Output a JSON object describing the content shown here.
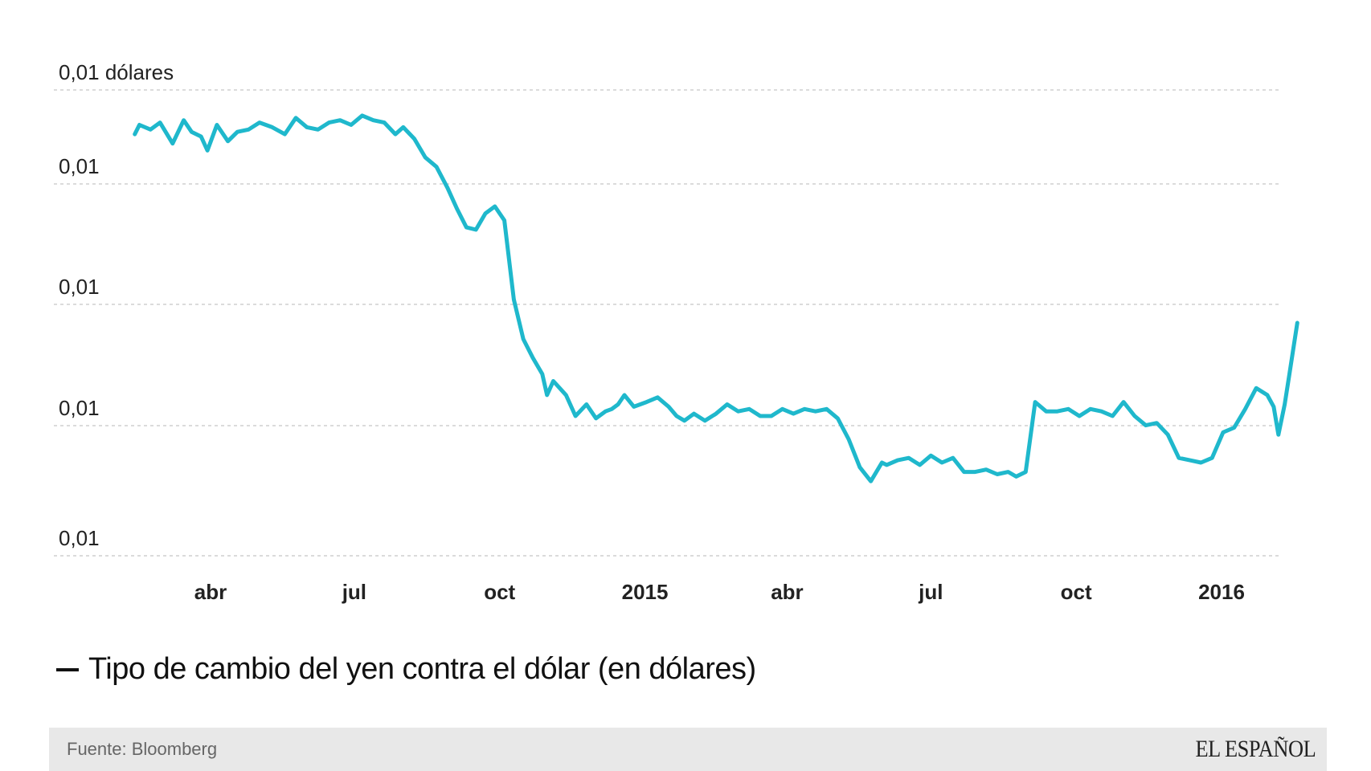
{
  "chart_data": {
    "type": "line",
    "y_ticks": [
      {
        "value": 0.0098,
        "label": "0,01 dólares"
      },
      {
        "value": 0.0093,
        "label": "0,01"
      },
      {
        "value": 0.0088,
        "label": "0,01"
      },
      {
        "value": 0.0083,
        "label": "0,01"
      },
      {
        "value": 0.0078,
        "label": "0,01"
      }
    ],
    "ylim": [
      0.0078,
      0.0098
    ],
    "x_ticks": [
      {
        "x": "2014-04-01",
        "label": "abr"
      },
      {
        "x": "2014-07-01",
        "label": "jul"
      },
      {
        "x": "2014-10-01",
        "label": "oct"
      },
      {
        "x": "2015-01-01",
        "label": "2015"
      },
      {
        "x": "2015-04-01",
        "label": "abr"
      },
      {
        "x": "2015-07-01",
        "label": "jul"
      },
      {
        "x": "2015-10-01",
        "label": "oct"
      },
      {
        "x": "2016-01-01",
        "label": "2016"
      }
    ],
    "xlim": [
      "2014-01-01",
      "2016-03-31"
    ],
    "grid": "horizontal dashed",
    "line_color": "#1fb8cc",
    "series": [
      {
        "name": "Tipo de cambio del yen contra el dólar (en dólares)",
        "x": [
          "2014-02-12",
          "2014-02-15",
          "2014-02-22",
          "2014-02-28",
          "2014-03-08",
          "2014-03-15",
          "2014-03-20",
          "2014-03-26",
          "2014-03-30",
          "2014-04-05",
          "2014-04-12",
          "2014-04-18",
          "2014-04-25",
          "2014-05-02",
          "2014-05-10",
          "2014-05-18",
          "2014-05-25",
          "2014-06-01",
          "2014-06-08",
          "2014-06-15",
          "2014-06-22",
          "2014-06-29",
          "2014-07-06",
          "2014-07-13",
          "2014-07-20",
          "2014-07-27",
          "2014-08-01",
          "2014-08-08",
          "2014-08-15",
          "2014-08-22",
          "2014-08-29",
          "2014-09-04",
          "2014-09-10",
          "2014-09-16",
          "2014-09-22",
          "2014-09-28",
          "2014-10-04",
          "2014-10-10",
          "2014-10-16",
          "2014-10-22",
          "2014-10-28",
          "2014-10-31",
          "2014-11-04",
          "2014-11-08",
          "2014-11-12",
          "2014-11-18",
          "2014-11-25",
          "2014-12-01",
          "2014-12-07",
          "2014-12-11",
          "2014-12-15",
          "2014-12-19",
          "2014-12-25",
          "2015-01-02",
          "2015-01-09",
          "2015-01-16",
          "2015-01-21",
          "2015-01-26",
          "2015-02-01",
          "2015-02-08",
          "2015-02-15",
          "2015-02-22",
          "2015-03-01",
          "2015-03-08",
          "2015-03-15",
          "2015-03-22",
          "2015-03-29",
          "2015-04-05",
          "2015-04-12",
          "2015-04-19",
          "2015-04-26",
          "2015-05-03",
          "2015-05-10",
          "2015-05-17",
          "2015-05-24",
          "2015-05-31",
          "2015-06-03",
          "2015-06-10",
          "2015-06-17",
          "2015-06-24",
          "2015-07-01",
          "2015-07-08",
          "2015-07-15",
          "2015-07-22",
          "2015-07-29",
          "2015-08-05",
          "2015-08-12",
          "2015-08-19",
          "2015-08-24",
          "2015-08-30",
          "2015-09-05",
          "2015-09-12",
          "2015-09-19",
          "2015-09-26",
          "2015-10-03",
          "2015-10-10",
          "2015-10-17",
          "2015-10-24",
          "2015-10-31",
          "2015-11-07",
          "2015-11-14",
          "2015-11-21",
          "2015-11-28",
          "2015-12-05",
          "2015-12-12",
          "2015-12-19",
          "2015-12-26",
          "2016-01-02",
          "2016-01-09",
          "2016-01-16",
          "2016-01-23",
          "2016-01-30",
          "2016-02-03",
          "2016-02-06",
          "2016-02-10",
          "2016-02-13",
          "2016-02-18"
        ],
        "values": [
          0.00961,
          0.00965,
          0.00963,
          0.00966,
          0.00957,
          0.00967,
          0.00962,
          0.0096,
          0.00954,
          0.00965,
          0.00958,
          0.00962,
          0.00963,
          0.00966,
          0.00964,
          0.00961,
          0.00968,
          0.00964,
          0.00963,
          0.00966,
          0.00967,
          0.00965,
          0.00969,
          0.00967,
          0.00966,
          0.00961,
          0.00964,
          0.00959,
          0.00951,
          0.00947,
          0.00938,
          0.00929,
          0.00921,
          0.0092,
          0.00927,
          0.0093,
          0.00924,
          0.0089,
          0.00873,
          0.00865,
          0.00858,
          0.00849,
          0.00855,
          0.00852,
          0.00849,
          0.0084,
          0.00845,
          0.00839,
          0.00842,
          0.00843,
          0.00845,
          0.00849,
          0.00844,
          0.00846,
          0.00848,
          0.00844,
          0.0084,
          0.00838,
          0.00841,
          0.00838,
          0.00841,
          0.00845,
          0.00842,
          0.00843,
          0.0084,
          0.0084,
          0.00843,
          0.00841,
          0.00843,
          0.00842,
          0.00843,
          0.00839,
          0.0083,
          0.00818,
          0.00812,
          0.0082,
          0.00819,
          0.00821,
          0.00822,
          0.00819,
          0.00823,
          0.0082,
          0.00822,
          0.00816,
          0.00816,
          0.00817,
          0.00815,
          0.00816,
          0.00814,
          0.00816,
          0.00846,
          0.00842,
          0.00842,
          0.00843,
          0.0084,
          0.00843,
          0.00842,
          0.0084,
          0.00846,
          0.0084,
          0.00836,
          0.00837,
          0.00832,
          0.00822,
          0.00821,
          0.0082,
          0.00822,
          0.00833,
          0.00835,
          0.00843,
          0.00852,
          0.00849,
          0.00844,
          0.00832,
          0.00845,
          0.00858,
          0.0088
        ]
      }
    ]
  },
  "legend": {
    "dash": "—",
    "label": "Tipo de cambio del yen contra el dólar (en dólares)"
  },
  "footer": {
    "source": "Fuente: Bloomberg",
    "brand": "EL ESPAÑOL"
  }
}
